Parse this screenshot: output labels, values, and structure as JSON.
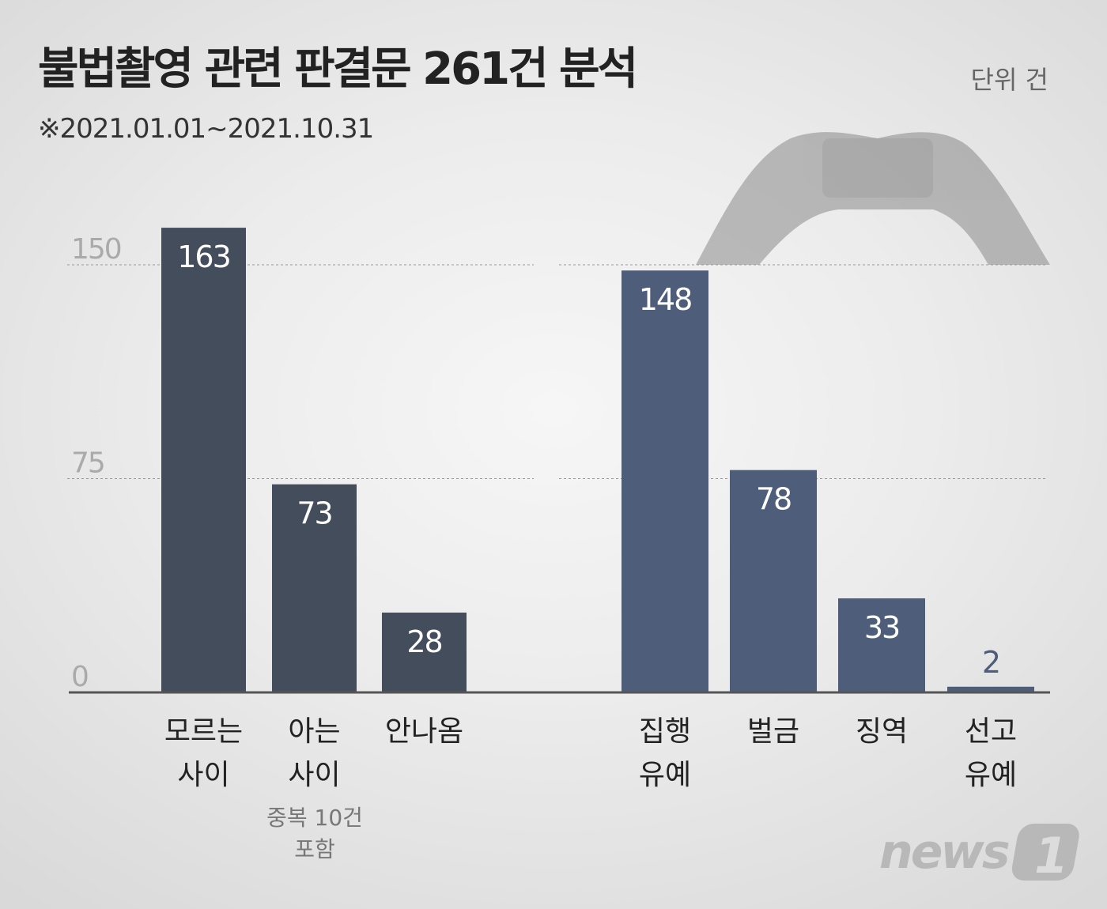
{
  "title": "불법촬영 관련 판결문 261건 분석",
  "subtitle": "※2021.01.01~2021.10.31",
  "unit": "단위 건",
  "note": "중복 10건\n포함",
  "logo": "news1",
  "chart_data": [
    {
      "type": "bar",
      "categories": [
        "모르는\n사이",
        "아는\n사이",
        "안나옴"
      ],
      "values": [
        163,
        73,
        28
      ],
      "yticks": [
        0,
        75,
        150
      ],
      "ylim": [
        0,
        150
      ],
      "grid": true,
      "color": "#444d5c"
    },
    {
      "type": "bar",
      "categories": [
        "집행\n유예",
        "벌금",
        "징역",
        "선고\n유예"
      ],
      "values": [
        148,
        78,
        33,
        2
      ],
      "yticks": [
        0,
        75,
        150
      ],
      "ylim": [
        0,
        150
      ],
      "grid": true,
      "color": "#4e5e7a"
    }
  ]
}
